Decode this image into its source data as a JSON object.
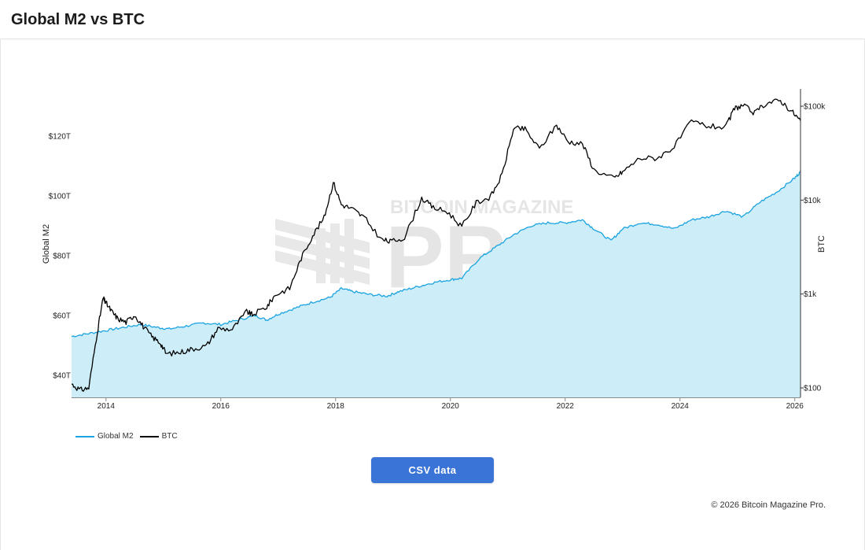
{
  "header": {
    "title": "Global M2 vs BTC"
  },
  "legend": [
    {
      "name": "Global M2",
      "color": "#1aa3e0"
    },
    {
      "name": "BTC",
      "color": "#000000"
    }
  ],
  "watermark": {
    "top": "BITCOIN MAGAZINE",
    "main": "PRO"
  },
  "button": {
    "label": "CSV data"
  },
  "footer": {
    "copyright": "© 2026 Bitcoin Magazine Pro."
  },
  "chart_data": {
    "type": "line",
    "x_range": [
      2013.4,
      2026.1
    ],
    "x_ticks": [
      "2014",
      "2016",
      "2018",
      "2020",
      "2022",
      "2024",
      "2026"
    ],
    "y_left": {
      "label": "Global M2",
      "ticks": [
        "$40T",
        "$60T",
        "$80T",
        "$100T",
        "$120T"
      ]
    },
    "y_right": {
      "label": "BTC",
      "scale": "log",
      "ticks": [
        "$100",
        "$1k",
        "$10k",
        "$100k"
      ]
    },
    "series": [
      {
        "name": "Global M2",
        "axis": "left",
        "unit": "trillion USD",
        "x": [
          2013.4,
          2013.7,
          2014.0,
          2014.3,
          2014.6,
          2014.9,
          2015.1,
          2015.4,
          2015.7,
          2016.0,
          2016.3,
          2016.6,
          2016.8,
          2017.0,
          2017.3,
          2017.6,
          2017.9,
          2018.1,
          2018.3,
          2018.6,
          2018.9,
          2019.1,
          2019.4,
          2019.7,
          2020.0,
          2020.2,
          2020.5,
          2020.8,
          2021.1,
          2021.4,
          2021.7,
          2022.0,
          2022.3,
          2022.5,
          2022.8,
          2023.0,
          2023.3,
          2023.6,
          2023.9,
          2024.2,
          2024.5,
          2024.8,
          2025.1,
          2025.4,
          2025.7,
          2026.0,
          2026.1
        ],
        "values": [
          53,
          54,
          55,
          56,
          57,
          56,
          55.5,
          56.5,
          57.5,
          57,
          58.5,
          60,
          58.5,
          60.5,
          62.5,
          64.5,
          66,
          69,
          68,
          67,
          66.5,
          68,
          69.5,
          71,
          72,
          72.5,
          79,
          83,
          87,
          90,
          91,
          91,
          92,
          89,
          85,
          89,
          91,
          90.5,
          89,
          92,
          93,
          95,
          93,
          98,
          101.5,
          106,
          108
        ]
      },
      {
        "name": "BTC",
        "axis": "right",
        "unit": "USD",
        "x": [
          2013.4,
          2013.55,
          2013.7,
          2013.85,
          2013.95,
          2014.0,
          2014.1,
          2014.2,
          2014.35,
          2014.5,
          2014.65,
          2014.8,
          2014.95,
          2015.05,
          2015.3,
          2015.5,
          2015.75,
          2015.95,
          2016.2,
          2016.45,
          2016.55,
          2016.8,
          2016.95,
          2017.2,
          2017.4,
          2017.6,
          2017.8,
          2017.96,
          2018.1,
          2018.3,
          2018.5,
          2018.8,
          2018.95,
          2019.2,
          2019.5,
          2019.7,
          2019.95,
          2020.2,
          2020.45,
          2020.7,
          2020.9,
          2021.1,
          2021.3,
          2021.55,
          2021.85,
          2022.05,
          2022.3,
          2022.5,
          2022.85,
          2023.0,
          2023.3,
          2023.6,
          2023.9,
          2024.2,
          2024.5,
          2024.8,
          2024.95,
          2025.1,
          2025.3,
          2025.5,
          2025.75,
          2025.95,
          2026.1
        ],
        "values": [
          110,
          95,
          100,
          400,
          900,
          800,
          650,
          550,
          500,
          600,
          450,
          350,
          300,
          230,
          240,
          260,
          280,
          430,
          420,
          650,
          600,
          730,
          980,
          1150,
          2400,
          4200,
          6500,
          15500,
          9000,
          8000,
          6500,
          3800,
          3600,
          4000,
          10500,
          8300,
          7500,
          5200,
          9400,
          10800,
          18500,
          58000,
          57000,
          35000,
          63000,
          42000,
          40000,
          21000,
          17000,
          20000,
          28000,
          28000,
          37000,
          69000,
          61000,
          60000,
          95000,
          102000,
          84000,
          108000,
          115000,
          88000,
          70000
        ]
      }
    ]
  }
}
